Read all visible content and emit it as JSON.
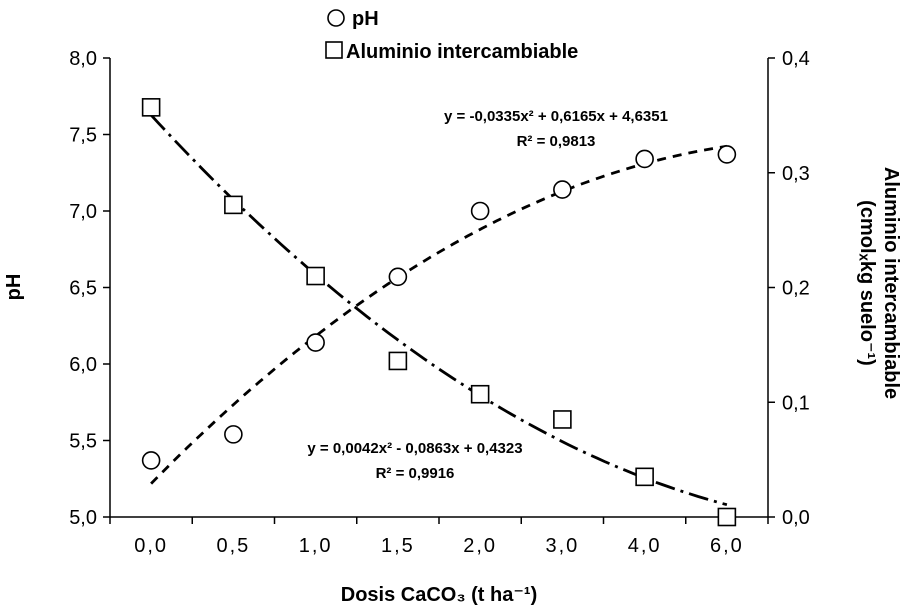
{
  "chart_data": {
    "type": "scatter",
    "title": "",
    "categories": [
      "0,0",
      "0,5",
      "1,0",
      "1,5",
      "2,0",
      "3,0",
      "4,0",
      "6,0"
    ],
    "xlabel": "Dosis CaCO₃ (t ha⁻¹)",
    "ylabel_left": "pH",
    "ylabel_right_line1": "Aluminio intercambiable",
    "ylabel_right_line2": "(cmolₓkg suelo⁻¹)",
    "y_left": {
      "range": [
        5.0,
        8.0
      ],
      "ticks": [
        "5,0",
        "5,5",
        "6,0",
        "6,5",
        "7,0",
        "7,5",
        "8,0"
      ],
      "tick_values": [
        5.0,
        5.5,
        6.0,
        6.5,
        7.0,
        7.5,
        8.0
      ]
    },
    "y_right": {
      "range": [
        0.0,
        0.4
      ],
      "ticks": [
        "0,0",
        "0,1",
        "0,2",
        "0,3",
        "0,4"
      ],
      "tick_values": [
        0.0,
        0.1,
        0.2,
        0.3,
        0.4
      ]
    },
    "series": [
      {
        "name": "pH",
        "axis": "left",
        "marker": "circle",
        "values": [
          5.37,
          5.54,
          6.14,
          6.57,
          7.0,
          7.14,
          7.34,
          7.37
        ],
        "trendline": {
          "type": "poly2",
          "coefficients": [
            -0.0335,
            0.6165,
            4.6351
          ],
          "style": "dashed"
        },
        "equation_line1": "y = -0,0335x² + 0,6165x + 4,6351",
        "equation_line2": "R² = 0,9813"
      },
      {
        "name": "Aluminio intercambiable",
        "axis": "right",
        "marker": "square",
        "values": [
          0.357,
          0.272,
          0.21,
          0.136,
          0.107,
          0.085,
          0.035,
          0.0
        ],
        "trendline": {
          "type": "poly2",
          "coefficients": [
            0.0042,
            -0.0863,
            0.4323
          ],
          "style": "dashdot"
        },
        "equation_line1": "y = 0,0042x² - 0,0863x + 0,4323",
        "equation_line2": "R² = 0,9916"
      }
    ],
    "legend": {
      "position": "top",
      "entries": [
        "pH",
        "Aluminio intercambiable"
      ]
    },
    "grid": false
  },
  "colors": {
    "axis": "#000000",
    "marker_fill": "#ffffff",
    "marker_stroke": "#000000"
  }
}
